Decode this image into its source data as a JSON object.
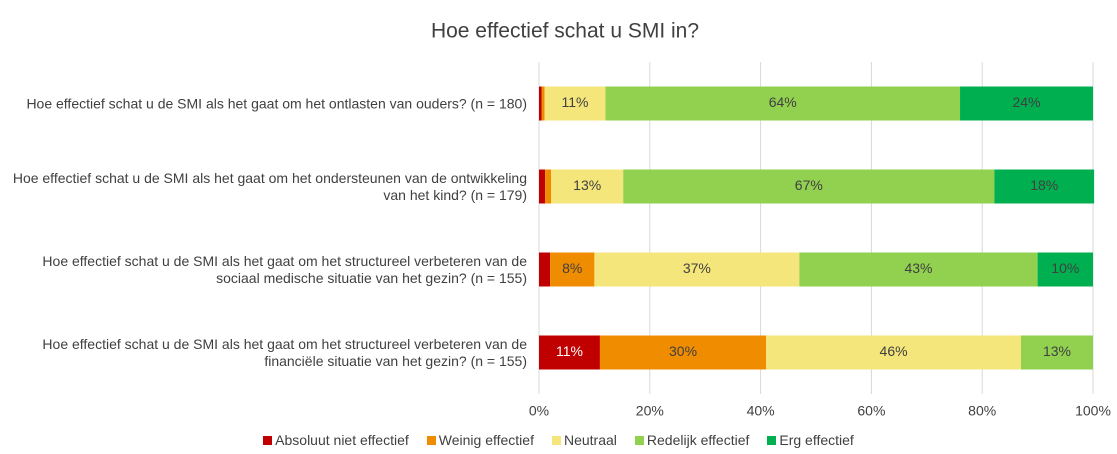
{
  "chart_data": {
    "type": "stacked-bar-horizontal",
    "title": "Hoe effectief schat u SMI in?",
    "categories": [
      "Hoe effectief schat u de SMI als het gaat om het ontlasten van ouders? (n = 180)",
      "Hoe effectief schat u de SMI als het gaat om het ondersteunen van de ontwikkeling van het kind? (n = 179)",
      "Hoe effectief schat u de SMI als het gaat om het structureel verbeteren van de sociaal medische situatie van het gezin? (n = 155)",
      "Hoe effectief schat u de SMI als het gaat om het structureel verbeteren van de financiële situatie van het gezin? (n = 155)"
    ],
    "series": [
      {
        "name": "Absoluut niet effectief",
        "color": "#c00000",
        "label_color": "#ffffff",
        "values": [
          0.5,
          1.1,
          2,
          11
        ],
        "value_labels": [
          null,
          null,
          null,
          "11%"
        ]
      },
      {
        "name": "Weinig effectief",
        "color": "#f08c00",
        "label_color": "#404040",
        "values": [
          0.5,
          1.1,
          8,
          30
        ],
        "value_labels": [
          null,
          null,
          "8%",
          "30%"
        ]
      },
      {
        "name": "Neutraal",
        "color": "#f5e67c",
        "label_color": "#404040",
        "values": [
          11,
          13,
          37,
          46
        ],
        "value_labels": [
          "11%",
          "13%",
          "37%",
          "46%"
        ]
      },
      {
        "name": "Redelijk effectief",
        "color": "#92d050",
        "label_color": "#404040",
        "values": [
          64,
          67,
          43,
          13
        ],
        "value_labels": [
          "64%",
          "67%",
          "43%",
          "13%"
        ]
      },
      {
        "name": "Erg effectief",
        "color": "#00b050",
        "label_color": "#404040",
        "values": [
          24,
          18,
          10,
          0
        ],
        "value_labels": [
          "24%",
          "18%",
          "10%",
          null
        ]
      }
    ],
    "xlim": [
      0,
      100
    ],
    "xticks": [
      {
        "value": 0,
        "label": "0%"
      },
      {
        "value": 20,
        "label": "20%"
      },
      {
        "value": 40,
        "label": "40%"
      },
      {
        "value": 60,
        "label": "60%"
      },
      {
        "value": 80,
        "label": "80%"
      },
      {
        "value": 100,
        "label": "100%"
      }
    ],
    "grid": true,
    "legend": "bottom"
  }
}
